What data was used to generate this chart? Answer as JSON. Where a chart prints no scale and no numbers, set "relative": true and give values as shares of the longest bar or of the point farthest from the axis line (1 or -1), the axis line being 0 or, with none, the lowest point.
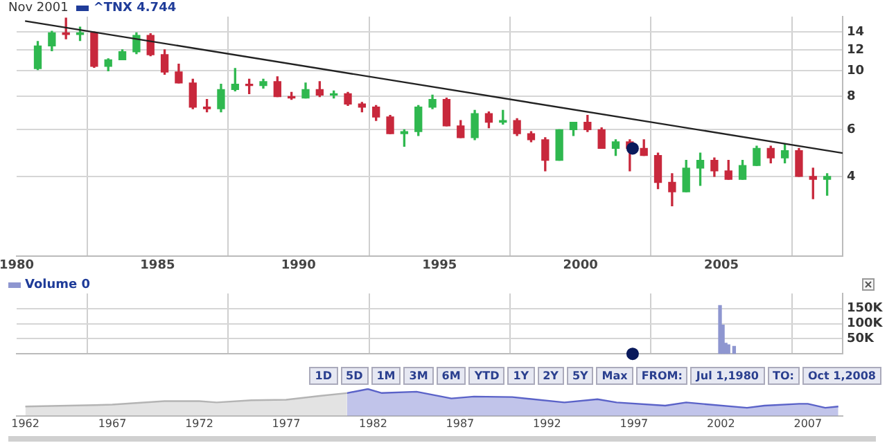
{
  "chart_data": [
    {
      "type": "candlestick",
      "title": "Nov 2001",
      "legend": "top left",
      "log": true,
      "grid": true,
      "xlim": [
        1980,
        2009.3
      ],
      "xticks": [
        1980,
        1985,
        1990,
        1995,
        2000,
        2005
      ],
      "ylim": [
        2,
        16
      ],
      "yticks": [
        4,
        6,
        8,
        10,
        12,
        14
      ],
      "series": [
        {
          "name": "^TNX 4.744",
          "color": "#1f3c99",
          "x": [
            1980.75,
            1981.25,
            1981.75,
            1982.25,
            1982.75,
            1983.25,
            1983.75,
            1984.25,
            1984.75,
            1985.25,
            1985.75,
            1986.25,
            1986.75,
            1987.25,
            1987.75,
            1988.25,
            1988.75,
            1989.25,
            1989.75,
            1990.25,
            1990.75,
            1991.25,
            1991.75,
            1992.25,
            1992.75,
            1993.25,
            1993.75,
            1994.25,
            1994.75,
            1995.25,
            1995.75,
            1996.25,
            1996.75,
            1997.25,
            1997.75,
            1998.25,
            1998.75,
            1999.25,
            1999.75,
            2000.25,
            2000.75,
            2001.25,
            2001.75,
            2002.25,
            2002.75,
            2003.25,
            2003.75,
            2004.25,
            2004.75,
            2005.25,
            2005.75,
            2006.25,
            2006.75,
            2007.25,
            2007.75,
            2008.25,
            2008.75
          ],
          "ohlc": [
            [
              10.2,
              12.9,
              10.1,
              12.4
            ],
            [
              12.4,
              14.1,
              11.9,
              13.9
            ],
            [
              13.9,
              15.8,
              13.2,
              13.7
            ],
            [
              13.7,
              14.6,
              13.0,
              13.9
            ],
            [
              13.9,
              14.0,
              10.3,
              10.4
            ],
            [
              10.4,
              11.1,
              10.0,
              11.0
            ],
            [
              11.0,
              12.0,
              11.0,
              11.8
            ],
            [
              11.8,
              13.9,
              11.6,
              13.6
            ],
            [
              13.6,
              13.8,
              11.4,
              11.5
            ],
            [
              11.5,
              12.0,
              9.7,
              9.9
            ],
            [
              9.9,
              10.6,
              9.0,
              9.0
            ],
            [
              9.0,
              9.3,
              7.2,
              7.3
            ],
            [
              7.3,
              7.8,
              7.0,
              7.2
            ],
            [
              7.2,
              8.9,
              7.0,
              8.5
            ],
            [
              8.5,
              10.2,
              8.4,
              8.9
            ],
            [
              8.9,
              9.3,
              8.2,
              8.8
            ],
            [
              8.8,
              9.3,
              8.6,
              9.1
            ],
            [
              9.1,
              9.5,
              8.0,
              8.0
            ],
            [
              8.0,
              8.3,
              7.8,
              7.9
            ],
            [
              7.9,
              9.0,
              7.9,
              8.5
            ],
            [
              8.5,
              9.1,
              8.0,
              8.1
            ],
            [
              8.1,
              8.4,
              7.9,
              8.2
            ],
            [
              8.2,
              8.3,
              7.4,
              7.5
            ],
            [
              7.5,
              7.6,
              7.0,
              7.3
            ],
            [
              7.3,
              7.4,
              6.5,
              6.7
            ],
            [
              6.7,
              6.8,
              5.8,
              5.8
            ],
            [
              5.8,
              6.0,
              5.2,
              5.9
            ],
            [
              5.9,
              7.4,
              5.7,
              7.3
            ],
            [
              7.3,
              8.1,
              7.2,
              7.8
            ],
            [
              7.8,
              7.9,
              6.2,
              6.2
            ],
            [
              6.2,
              6.5,
              5.6,
              5.6
            ],
            [
              5.6,
              7.1,
              5.5,
              6.9
            ],
            [
              6.9,
              7.0,
              6.1,
              6.4
            ],
            [
              6.4,
              7.1,
              6.3,
              6.5
            ],
            [
              6.5,
              6.6,
              5.7,
              5.8
            ],
            [
              5.8,
              5.9,
              5.4,
              5.5
            ],
            [
              5.5,
              5.6,
              4.2,
              4.6
            ],
            [
              4.6,
              6.0,
              4.6,
              6.0
            ],
            [
              6.0,
              6.4,
              5.7,
              6.4
            ],
            [
              6.4,
              6.8,
              5.9,
              6.0
            ],
            [
              6.0,
              6.1,
              5.1,
              5.1
            ],
            [
              5.1,
              5.5,
              4.8,
              5.4
            ],
            [
              5.4,
              5.5,
              4.2,
              5.1
            ],
            [
              5.1,
              5.5,
              4.8,
              4.8
            ],
            [
              4.8,
              4.9,
              3.6,
              3.8
            ],
            [
              3.8,
              4.1,
              3.1,
              3.5
            ],
            [
              3.5,
              4.6,
              3.5,
              4.3
            ],
            [
              4.3,
              4.9,
              3.7,
              4.6
            ],
            [
              4.6,
              4.7,
              4.0,
              4.2
            ],
            [
              4.2,
              4.6,
              3.9,
              3.9
            ],
            [
              3.9,
              4.6,
              3.9,
              4.4
            ],
            [
              4.4,
              5.2,
              4.4,
              5.1
            ],
            [
              5.1,
              5.2,
              4.5,
              4.7
            ],
            [
              4.7,
              5.3,
              4.5,
              5.0
            ],
            [
              5.0,
              5.1,
              4.0,
              4.0
            ],
            [
              4.0,
              4.3,
              3.3,
              3.9
            ],
            [
              3.9,
              4.1,
              3.4,
              4.0
            ]
          ],
          "colors": [
            "#2fb84f",
            "#2fb84f",
            "#c8283c",
            "#2fb84f",
            "#c8283c",
            "#2fb84f",
            "#2fb84f",
            "#2fb84f",
            "#c8283c",
            "#c8283c",
            "#c8283c",
            "#c8283c",
            "#c8283c",
            "#2fb84f",
            "#2fb84f",
            "#c8283c",
            "#2fb84f",
            "#c8283c",
            "#c8283c",
            "#2fb84f",
            "#c8283c",
            "#2fb84f",
            "#c8283c",
            "#c8283c",
            "#c8283c",
            "#c8283c",
            "#2fb84f",
            "#2fb84f",
            "#2fb84f",
            "#c8283c",
            "#c8283c",
            "#2fb84f",
            "#c8283c",
            "#2fb84f",
            "#c8283c",
            "#c8283c",
            "#c8283c",
            "#2fb84f",
            "#2fb84f",
            "#c8283c",
            "#c8283c",
            "#2fb84f",
            "#c8283c",
            "#c8283c",
            "#c8283c",
            "#c8283c",
            "#2fb84f",
            "#2fb84f",
            "#c8283c",
            "#c8283c",
            "#2fb84f",
            "#2fb84f",
            "#c8283c",
            "#2fb84f",
            "#c8283c",
            "#c8283c",
            "#2fb84f"
          ]
        },
        {
          "type": "line",
          "color": "#222222",
          "x": [
            1980.3,
            2009.3
          ],
          "values": [
            15.4,
            4.9
          ]
        },
        {
          "type": "scatter",
          "color": "#0a1a5c",
          "x": [
            2001.85
          ],
          "values": [
            5.1
          ]
        }
      ]
    },
    {
      "type": "bar",
      "legend": "top left",
      "grid": true,
      "tick_labels": "y",
      "xlim": [
        1980,
        2009.3
      ],
      "xticks": [
        {
          "value": 1980,
          "label": null
        },
        {
          "value": 1985,
          "label": null
        },
        {
          "value": 1990,
          "label": null
        },
        {
          "value": 1995,
          "label": null
        },
        {
          "value": 2000,
          "label": null
        },
        {
          "value": 2005,
          "label": null
        }
      ],
      "ylim": [
        0,
        200000
      ],
      "yticks": [
        {
          "value": 50000,
          "label": "50K"
        },
        {
          "value": 100000,
          "label": "100K"
        },
        {
          "value": 150000,
          "label": "150K"
        }
      ],
      "series": [
        {
          "name": "Volume 0",
          "color": "#8e96d0",
          "x": [
            2004.95,
            2005.05,
            2005.15,
            2005.25,
            2005.45
          ],
          "values": [
            160000,
            95000,
            35000,
            30000,
            25000
          ]
        },
        {
          "type": "scatter",
          "color": "#0a1a5c",
          "x": [
            2001.85
          ],
          "values": [
            0
          ]
        }
      ]
    },
    {
      "type": "area",
      "relative": true,
      "tick_labels": "x",
      "xlim": [
        1961.5,
        2009
      ],
      "xticks": [
        1962,
        1967,
        1972,
        1977,
        1982,
        1987,
        1992,
        1997,
        2002,
        2007
      ],
      "annotations": [
        "1D",
        "5D",
        "1M",
        "3M",
        "6M",
        "YTD",
        "1Y",
        "2Y",
        "5Y",
        "Max",
        "FROM:",
        "Jul 1,1980",
        "TO:",
        "Oct 1,2008"
      ],
      "series": [
        {
          "color": "#b4b4b4",
          "x": [
            1962,
            1966,
            1967,
            1970,
            1972,
            1973,
            1975,
            1977,
            1979,
            1980.5
          ],
          "values": [
            0.35,
            0.4,
            0.42,
            0.55,
            0.55,
            0.5,
            0.58,
            0.6,
            0.75,
            0.85
          ]
        },
        {
          "color": "#5a62c8",
          "x": [
            1980.5,
            1981.7,
            1982.5,
            1984.5,
            1986.5,
            1987.8,
            1990,
            1993,
            1994.9,
            1996,
            1998.8,
            2000,
            2003.5,
            2004.5,
            2006.5,
            2007,
            2008,
            2008.75
          ],
          "values": [
            0.85,
            1.0,
            0.85,
            0.9,
            0.65,
            0.72,
            0.7,
            0.5,
            0.62,
            0.5,
            0.38,
            0.5,
            0.3,
            0.38,
            0.45,
            0.45,
            0.3,
            0.35
          ]
        }
      ]
    }
  ]
}
